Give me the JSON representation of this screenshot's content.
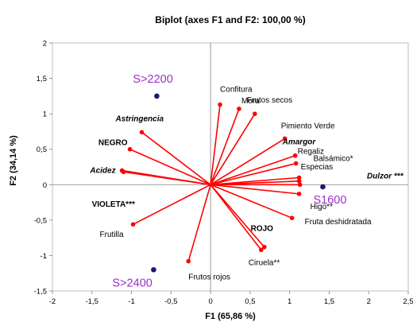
{
  "chart_data": {
    "type": "scatter",
    "title": "Biplot (axes F1 and F2: 100,00 %)",
    "xlabel": "F1 (65,86 %)",
    "ylabel": "F2 (34,14 %)",
    "xlim": [
      -2,
      2.5
    ],
    "ylim": [
      -1.5,
      2
    ],
    "xticks": [
      -2,
      -1.5,
      -1,
      -0.5,
      0,
      0.5,
      1,
      1.5,
      2,
      2.5
    ],
    "yticks": [
      -1.5,
      -1,
      -0.5,
      0,
      0.5,
      1,
      1.5,
      2
    ],
    "xtick_labels": [
      "-2",
      "-1,5",
      "-1",
      "-0,5",
      "0",
      "0,5",
      "1",
      "1,5",
      "2",
      "2,5"
    ],
    "ytick_labels": [
      "-1,5",
      "-1",
      "-0,5",
      "0",
      "0,5",
      "1",
      "1,5",
      "2"
    ],
    "grid": false,
    "colors": {
      "vector": "#ff0000",
      "observation": "#1a1a6e",
      "observation_label": "#9b30c8",
      "text": "#000000",
      "axis": "#7f7f7f"
    },
    "observations": [
      {
        "label": "S>2200",
        "x": -0.68,
        "y": 1.25
      },
      {
        "label": "S1600",
        "x": 1.42,
        "y": -0.03
      },
      {
        "label": "S>2400",
        "x": -0.72,
        "y": -1.2
      }
    ],
    "variables": [
      {
        "label": "Confitura",
        "x": 0.12,
        "y": 1.13,
        "style": "normal"
      },
      {
        "label": "Mora",
        "x": 0.36,
        "y": 1.07,
        "style": "normal"
      },
      {
        "label": "Frutos secos",
        "x": 0.56,
        "y": 1.0,
        "style": "normal"
      },
      {
        "label": "Pimiento Verde",
        "x": 0.94,
        "y": 0.65,
        "style": "normal"
      },
      {
        "label": "Amargor",
        "x": 1.07,
        "y": 0.41,
        "style": "bolditalic"
      },
      {
        "label": "Regaliz",
        "x": 1.08,
        "y": 0.3,
        "style": "normal"
      },
      {
        "label": "Balsámico*",
        "x": 1.12,
        "y": 0.1,
        "style": "normal"
      },
      {
        "label": "Especias",
        "x": 1.12,
        "y": 0.05,
        "style": "normal"
      },
      {
        "label": "Dulzor ***",
        "x": 1.13,
        "y": 0.0,
        "style": "bolditalic"
      },
      {
        "label": "Higo**",
        "x": 1.12,
        "y": -0.13,
        "style": "normal"
      },
      {
        "label": "Fruta deshidratada",
        "x": 1.03,
        "y": -0.47,
        "style": "normal"
      },
      {
        "label": "ROJO",
        "x": 0.68,
        "y": -0.88,
        "style": "bold"
      },
      {
        "label": "Ciruela**",
        "x": 0.64,
        "y": -0.92,
        "style": "normal"
      },
      {
        "label": "Frutos rojos",
        "x": -0.28,
        "y": -1.08,
        "style": "normal"
      },
      {
        "label": "Frutilla",
        "x": -0.98,
        "y": -0.56,
        "style": "normal"
      },
      {
        "label": "VIOLETA***",
        "x": -1.1,
        "y": 0.18,
        "style": "bold"
      },
      {
        "label": "Acidez",
        "x": -1.12,
        "y": 0.2,
        "style": "bolditalic"
      },
      {
        "label": "NEGRO",
        "x": -1.02,
        "y": 0.5,
        "style": "bold"
      },
      {
        "label": "Astringencia",
        "x": -0.87,
        "y": 0.74,
        "style": "bolditalic"
      }
    ]
  }
}
